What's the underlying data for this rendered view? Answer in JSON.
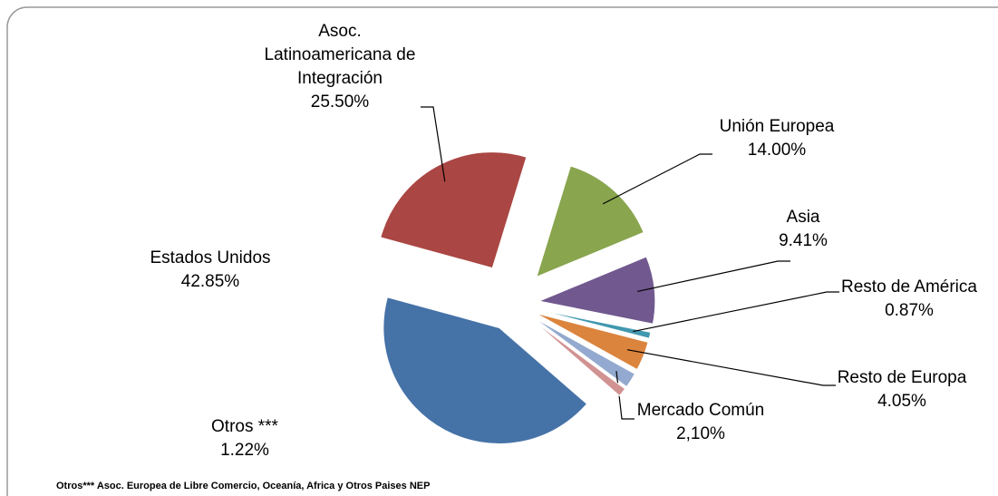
{
  "chart_data": {
    "type": "pie",
    "categories": [
      "Estados Unidos",
      "Asoc. Latinoamericana de Integración",
      "Unión Europea",
      "Asia",
      "Resto de América",
      "Resto de Europa",
      "Mercado Común",
      "Otros ***"
    ],
    "values": [
      42.85,
      25.5,
      14,
      9.41,
      0.87,
      4.05,
      2.1,
      1.22
    ],
    "value_labels": [
      "42.85%",
      "25.50%",
      "14.00%",
      "9.41%",
      "0.87%",
      "4.05%",
      "2,10%",
      "1.22%"
    ],
    "colors": [
      "#4572a7",
      "#aa4643",
      "#89a54e",
      "#71588f",
      "#4198af",
      "#db843d",
      "#93a9cf",
      "#d19392"
    ],
    "footnote": "Otros*** Asoc. Europea de Libre Comercio, Oceanía, Africa y Otros Paises NEP"
  }
}
